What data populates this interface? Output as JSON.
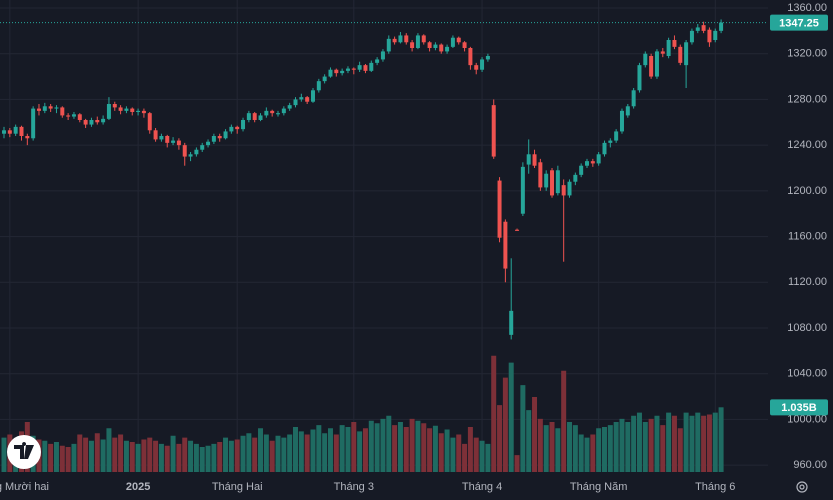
{
  "chart_data": {
    "type": "candlestick",
    "ylim": [
      954,
      1367
    ],
    "yticks": [
      {
        "value": 1360,
        "label": "1360.00"
      },
      {
        "value": 1320,
        "label": "1320.00"
      },
      {
        "value": 1280,
        "label": "1280.00"
      },
      {
        "value": 1240,
        "label": "1240.00"
      },
      {
        "value": 1200,
        "label": "1200.00"
      },
      {
        "value": 1160,
        "label": "1160.00"
      },
      {
        "value": 1120,
        "label": "1120.00"
      },
      {
        "value": 1080,
        "label": "1080.00"
      },
      {
        "value": 1040,
        "label": "1040.00"
      },
      {
        "value": 1000,
        "label": "1000.00"
      },
      {
        "value": 960,
        "label": "960.00"
      }
    ],
    "xticks": [
      {
        "value": 1,
        "label": "Tháng Mười hai"
      },
      {
        "value": 23,
        "label": "2025"
      },
      {
        "value": 40,
        "label": "Tháng Hai"
      },
      {
        "value": 60,
        "label": "Tháng 3"
      },
      {
        "value": 82,
        "label": "Tháng 4"
      },
      {
        "value": 102,
        "label": "Tháng Năm"
      },
      {
        "value": 122,
        "label": "Tháng 6"
      }
    ],
    "grid": true,
    "up_color": "#26a69a",
    "down_color": "#ef5350",
    "volume_up_color": "#1f6b62",
    "volume_down_color": "#7d3038",
    "volume_lim": [
      0,
      2
    ],
    "last_price": 1347.25,
    "last_volume": {
      "value": 1.035,
      "label": "1.035B"
    },
    "ohlc": [
      [
        1250,
        1256,
        1246,
        1253
      ],
      [
        1253,
        1255,
        1247,
        1250
      ],
      [
        1250,
        1258,
        1248,
        1256
      ],
      [
        1256,
        1257,
        1244,
        1248
      ],
      [
        1248,
        1250,
        1240,
        1246
      ],
      [
        1246,
        1274,
        1244,
        1272
      ],
      [
        1272,
        1276,
        1266,
        1270
      ],
      [
        1270,
        1277,
        1268,
        1274
      ],
      [
        1274,
        1276,
        1269,
        1272
      ],
      [
        1272,
        1275,
        1268,
        1273
      ],
      [
        1273,
        1274,
        1264,
        1266
      ],
      [
        1266,
        1268,
        1262,
        1265
      ],
      [
        1265,
        1269,
        1263,
        1267
      ],
      [
        1267,
        1268,
        1260,
        1262
      ],
      [
        1262,
        1263,
        1255,
        1258
      ],
      [
        1258,
        1264,
        1256,
        1262
      ],
      [
        1262,
        1265,
        1258,
        1260
      ],
      [
        1260,
        1266,
        1258,
        1263
      ],
      [
        1263,
        1282,
        1262,
        1276
      ],
      [
        1276,
        1278,
        1270,
        1273
      ],
      [
        1273,
        1275,
        1267,
        1270
      ],
      [
        1270,
        1274,
        1268,
        1272
      ],
      [
        1272,
        1273,
        1266,
        1269
      ],
      [
        1269,
        1272,
        1266,
        1270
      ],
      [
        1270,
        1272,
        1264,
        1268
      ],
      [
        1268,
        1269,
        1250,
        1253
      ],
      [
        1253,
        1255,
        1243,
        1245
      ],
      [
        1245,
        1250,
        1243,
        1248
      ],
      [
        1248,
        1249,
        1238,
        1242
      ],
      [
        1242,
        1247,
        1240,
        1244
      ],
      [
        1244,
        1246,
        1236,
        1240
      ],
      [
        1240,
        1242,
        1222,
        1230
      ],
      [
        1230,
        1234,
        1226,
        1232
      ],
      [
        1232,
        1238,
        1230,
        1236
      ],
      [
        1236,
        1242,
        1234,
        1240
      ],
      [
        1240,
        1245,
        1238,
        1243
      ],
      [
        1243,
        1250,
        1241,
        1248
      ],
      [
        1248,
        1250,
        1243,
        1246
      ],
      [
        1246,
        1254,
        1245,
        1252
      ],
      [
        1252,
        1258,
        1250,
        1256
      ],
      [
        1256,
        1257,
        1250,
        1254
      ],
      [
        1254,
        1264,
        1252,
        1262
      ],
      [
        1262,
        1270,
        1260,
        1268
      ],
      [
        1268,
        1269,
        1260,
        1262
      ],
      [
        1262,
        1268,
        1261,
        1266
      ],
      [
        1266,
        1273,
        1264,
        1270
      ],
      [
        1270,
        1271,
        1265,
        1268
      ],
      [
        1267,
        1270,
        1265,
        1268
      ],
      [
        1268,
        1274,
        1266,
        1272
      ],
      [
        1272,
        1277,
        1270,
        1275
      ],
      [
        1275,
        1282,
        1273,
        1280
      ],
      [
        1280,
        1285,
        1278,
        1282
      ],
      [
        1282,
        1283,
        1276,
        1278
      ],
      [
        1278,
        1290,
        1277,
        1288
      ],
      [
        1288,
        1298,
        1286,
        1296
      ],
      [
        1296,
        1302,
        1294,
        1300
      ],
      [
        1300,
        1308,
        1299,
        1306
      ],
      [
        1306,
        1307,
        1300,
        1303
      ],
      [
        1303,
        1307,
        1301,
        1305
      ],
      [
        1305,
        1309,
        1303,
        1307
      ],
      [
        1307,
        1308,
        1302,
        1306
      ],
      [
        1306,
        1313,
        1304,
        1310
      ],
      [
        1310,
        1311,
        1303,
        1305
      ],
      [
        1305,
        1314,
        1304,
        1312
      ],
      [
        1312,
        1317,
        1310,
        1315
      ],
      [
        1315,
        1324,
        1313,
        1322
      ],
      [
        1322,
        1336,
        1320,
        1333
      ],
      [
        1333,
        1335,
        1328,
        1330
      ],
      [
        1330,
        1339,
        1329,
        1336
      ],
      [
        1336,
        1338,
        1328,
        1330
      ],
      [
        1330,
        1332,
        1322,
        1325
      ],
      [
        1325,
        1338,
        1324,
        1336
      ],
      [
        1336,
        1337,
        1328,
        1330
      ],
      [
        1330,
        1331,
        1322,
        1325
      ],
      [
        1325,
        1330,
        1323,
        1328
      ],
      [
        1328,
        1329,
        1320,
        1322
      ],
      [
        1322,
        1328,
        1320,
        1326
      ],
      [
        1326,
        1336,
        1325,
        1334
      ],
      [
        1334,
        1335,
        1328,
        1330
      ],
      [
        1330,
        1331,
        1322,
        1325
      ],
      [
        1325,
        1326,
        1306,
        1310
      ],
      [
        1310,
        1312,
        1302,
        1306
      ],
      [
        1306,
        1317,
        1304,
        1315
      ],
      [
        1315,
        1320,
        1313,
        1318
      ],
      [
        1275,
        1280,
        1228,
        1230
      ],
      [
        1209,
        1212,
        1155,
        1159
      ],
      [
        1173,
        1175,
        1120,
        1132
      ],
      [
        1074,
        1141,
        1070,
        1095
      ],
      [
        1166,
        1167,
        1165,
        1165
      ],
      [
        1180,
        1225,
        1178,
        1221
      ],
      [
        1223,
        1245,
        1215,
        1232
      ],
      [
        1232,
        1236,
        1220,
        1222
      ],
      [
        1225,
        1228,
        1200,
        1203
      ],
      [
        1203,
        1218,
        1200,
        1215
      ],
      [
        1218,
        1220,
        1194,
        1196
      ],
      [
        1198,
        1222,
        1196,
        1218
      ],
      [
        1205,
        1210,
        1138,
        1196
      ],
      [
        1196,
        1210,
        1194,
        1208
      ],
      [
        1208,
        1216,
        1205,
        1214
      ],
      [
        1214,
        1224,
        1212,
        1222
      ],
      [
        1222,
        1228,
        1220,
        1226
      ],
      [
        1226,
        1228,
        1221,
        1224
      ],
      [
        1224,
        1234,
        1222,
        1232
      ],
      [
        1232,
        1244,
        1230,
        1242
      ],
      [
        1242,
        1246,
        1238,
        1244
      ],
      [
        1244,
        1254,
        1242,
        1252
      ],
      [
        1252,
        1272,
        1250,
        1270
      ],
      [
        1266,
        1276,
        1264,
        1274
      ],
      [
        1274,
        1290,
        1272,
        1288
      ],
      [
        1288,
        1312,
        1286,
        1310
      ],
      [
        1310,
        1322,
        1308,
        1320
      ],
      [
        1318,
        1320,
        1298,
        1300
      ],
      [
        1300,
        1324,
        1298,
        1322
      ],
      [
        1322,
        1325,
        1317,
        1320
      ],
      [
        1318,
        1334,
        1316,
        1332
      ],
      [
        1332,
        1336,
        1324,
        1326
      ],
      [
        1326,
        1328,
        1310,
        1312
      ],
      [
        1310,
        1332,
        1290,
        1330
      ],
      [
        1330,
        1342,
        1328,
        1340
      ],
      [
        1340,
        1346,
        1338,
        1343
      ],
      [
        1345,
        1348,
        1338,
        1340
      ],
      [
        1341,
        1343,
        1326,
        1330
      ],
      [
        1332,
        1342,
        1330,
        1340
      ],
      [
        1340,
        1350,
        1338,
        1347.25
      ]
    ],
    "volume": [
      0.55,
      0.6,
      0.5,
      0.65,
      0.8,
      0.58,
      0.52,
      0.5,
      0.45,
      0.48,
      0.42,
      0.4,
      0.45,
      0.6,
      0.55,
      0.5,
      0.62,
      0.52,
      0.7,
      0.55,
      0.6,
      0.5,
      0.48,
      0.45,
      0.52,
      0.55,
      0.5,
      0.45,
      0.42,
      0.58,
      0.45,
      0.55,
      0.5,
      0.45,
      0.4,
      0.42,
      0.45,
      0.48,
      0.55,
      0.5,
      0.52,
      0.58,
      0.62,
      0.55,
      0.7,
      0.6,
      0.5,
      0.58,
      0.55,
      0.6,
      0.72,
      0.65,
      0.6,
      0.68,
      0.75,
      0.62,
      0.7,
      0.6,
      0.75,
      0.72,
      0.8,
      0.65,
      0.7,
      0.82,
      0.78,
      0.85,
      0.9,
      0.75,
      0.8,
      0.72,
      0.85,
      0.82,
      0.78,
      0.7,
      0.74,
      0.62,
      0.68,
      0.55,
      0.6,
      0.45,
      0.72,
      0.55,
      0.5,
      0.45,
      1.86,
      1.07,
      1.51,
      1.75,
      0.27,
      1.39,
      0.99,
      1.2,
      0.85,
      0.75,
      0.8,
      0.7,
      1.62,
      0.8,
      0.75,
      0.6,
      0.55,
      0.6,
      0.7,
      0.72,
      0.75,
      0.8,
      0.85,
      0.8,
      0.9,
      0.95,
      0.8,
      0.85,
      0.9,
      0.75,
      0.95,
      0.9,
      0.7,
      0.95,
      0.9,
      0.95,
      0.9,
      0.92,
      0.95,
      1.035
    ]
  }
}
